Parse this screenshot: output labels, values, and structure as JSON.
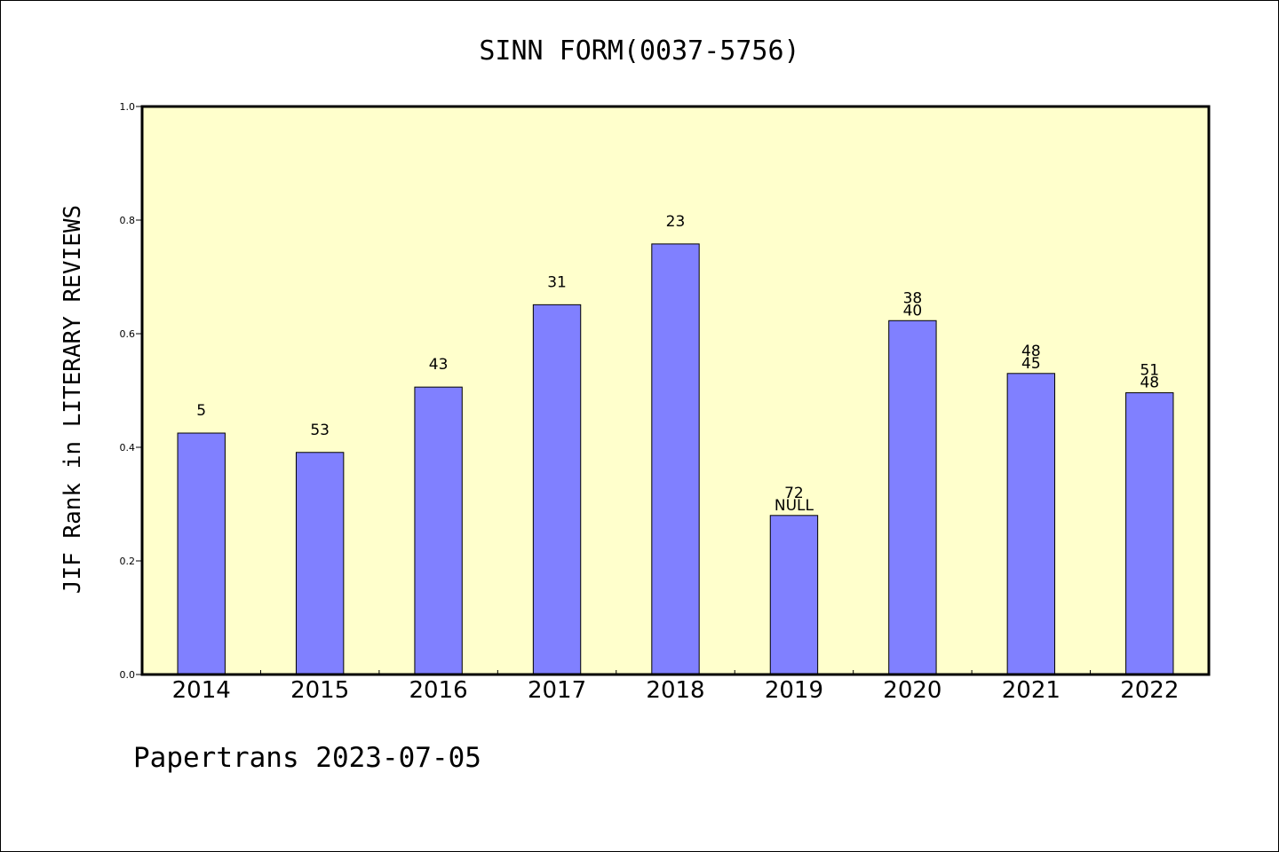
{
  "chart_data": {
    "type": "bar",
    "title": "SINN FORM(0037-5756)",
    "xlabel": "",
    "ylabel": "JIF Rank in LITERARY REVIEWS",
    "ylim": [
      0,
      1.0
    ],
    "yticks": [
      "0.0",
      "0.2",
      "0.4",
      "0.6",
      "0.8",
      "1.0"
    ],
    "categories": [
      "2014",
      "2015",
      "2016",
      "2017",
      "2018",
      "2019",
      "2020",
      "2021",
      "2022"
    ],
    "values": [
      0.425,
      0.391,
      0.506,
      0.651,
      0.758,
      0.28,
      0.623,
      0.53,
      0.496
    ],
    "labels": [
      [
        "5"
      ],
      [
        "53"
      ],
      [
        "43"
      ],
      [
        "31"
      ],
      [
        "23"
      ],
      [
        "72",
        "NULL"
      ],
      [
        "38",
        "40"
      ],
      [
        "48",
        "45"
      ],
      [
        "51",
        "48"
      ]
    ],
    "grid": false,
    "colors": {
      "plot_bg": "#ffffcc",
      "bar": "#8080ff",
      "bar_edge": "#000000"
    }
  },
  "footer": {
    "text": "Papertrans 2023-07-05"
  }
}
